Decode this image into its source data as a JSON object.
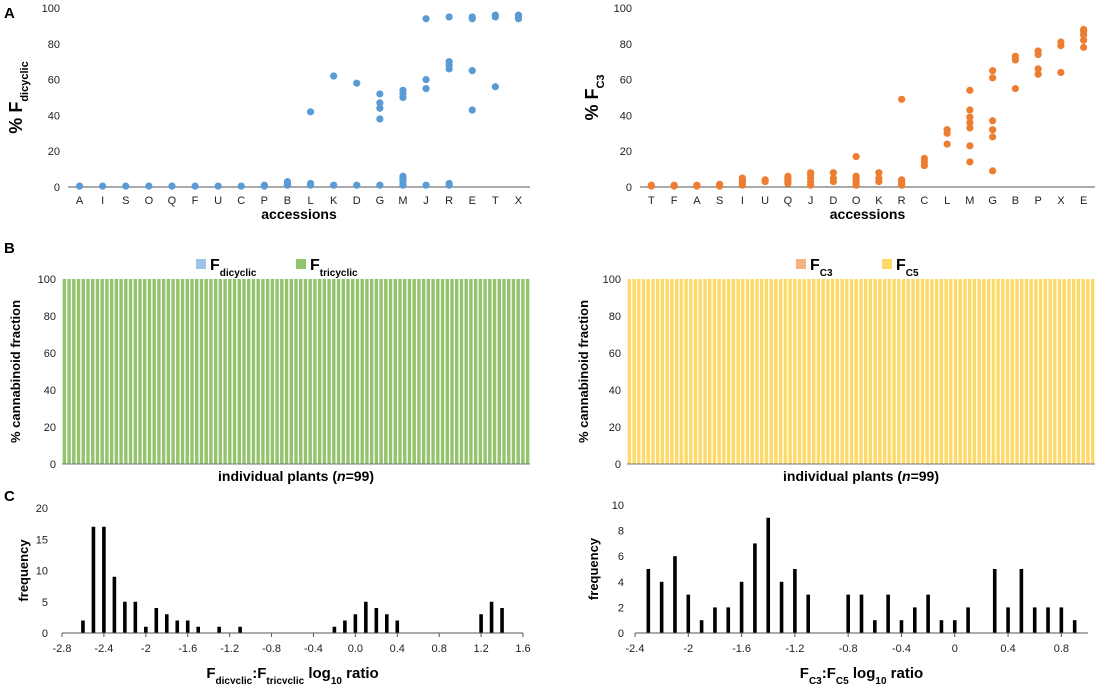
{
  "panel_labels": {
    "a": "A",
    "b": "B",
    "c": "C"
  },
  "colors": {
    "blue": "#5b9bd5",
    "orange": "#ed7d31",
    "green": "#92c36d",
    "lightblue": "#9dc3e6",
    "salmon": "#f4b183",
    "yellow": "#ffd966",
    "black": "#000000"
  },
  "chart_data": [
    {
      "id": "A-left",
      "type": "scatter",
      "ylabel": {
        "pre": "% F",
        "sub": "dicyclic"
      },
      "xlabel": "accessions",
      "ylim": [
        0,
        100
      ],
      "yticks": [
        0,
        20,
        40,
        60,
        80,
        100
      ],
      "categories": [
        "A",
        "I",
        "S",
        "O",
        "Q",
        "F",
        "U",
        "C",
        "P",
        "B",
        "L",
        "K",
        "D",
        "G",
        "M",
        "J",
        "R",
        "E",
        "T",
        "X"
      ],
      "points": {
        "A": [
          0.5
        ],
        "I": [
          0.5
        ],
        "S": [
          0.5
        ],
        "O": [
          0.5
        ],
        "Q": [
          0.5
        ],
        "F": [
          0.5
        ],
        "U": [
          0.5
        ],
        "C": [
          0.5
        ],
        "P": [
          0.5,
          1
        ],
        "B": [
          1,
          2,
          3
        ],
        "L": [
          1,
          2,
          42
        ],
        "K": [
          1,
          62
        ],
        "D": [
          1,
          58
        ],
        "G": [
          1,
          38,
          44,
          47,
          52
        ],
        "M": [
          1,
          3,
          4,
          5,
          6,
          50,
          52,
          54
        ],
        "J": [
          1,
          55,
          60,
          94
        ],
        "R": [
          1,
          2,
          66,
          68,
          70,
          95
        ],
        "E": [
          43,
          65,
          94,
          95
        ],
        "T": [
          56,
          95,
          96
        ],
        "X": [
          94,
          95,
          96
        ]
      }
    },
    {
      "id": "A-right",
      "type": "scatter",
      "ylabel": {
        "pre": "% F",
        "sub": "C3"
      },
      "xlabel": "accessions",
      "ylim": [
        0,
        100
      ],
      "yticks": [
        0,
        20,
        40,
        60,
        80,
        100
      ],
      "categories": [
        "T",
        "F",
        "A",
        "S",
        "I",
        "U",
        "Q",
        "J",
        "D",
        "O",
        "K",
        "R",
        "C",
        "L",
        "M",
        "G",
        "B",
        "P",
        "X",
        "E"
      ],
      "points": {
        "T": [
          0.5,
          1
        ],
        "F": [
          0.5,
          1
        ],
        "A": [
          0.5,
          1
        ],
        "S": [
          0.5,
          1.5
        ],
        "I": [
          1,
          2,
          3,
          4,
          5
        ],
        "U": [
          3,
          4
        ],
        "Q": [
          2,
          3,
          4,
          5,
          6
        ],
        "J": [
          1,
          3,
          5,
          7,
          8
        ],
        "D": [
          3,
          5,
          8
        ],
        "O": [
          1,
          2,
          4,
          5,
          6,
          17
        ],
        "K": [
          3,
          5,
          8
        ],
        "R": [
          1,
          2,
          3,
          4,
          49
        ],
        "C": [
          12,
          14,
          16
        ],
        "L": [
          24,
          30,
          32
        ],
        "M": [
          14,
          23,
          33,
          36,
          39,
          43,
          54
        ],
        "G": [
          9,
          28,
          32,
          37,
          61,
          65
        ],
        "B": [
          55,
          71,
          73
        ],
        "P": [
          63,
          66,
          74,
          76
        ],
        "X": [
          64,
          79,
          81
        ],
        "E": [
          78,
          82,
          85,
          87,
          88
        ]
      }
    },
    {
      "id": "B-left",
      "type": "stacked-bar",
      "legend": [
        {
          "pre": "F",
          "sub": "dicyclic",
          "color": "lightblue"
        },
        {
          "pre": "F",
          "sub": "tricyclic",
          "color": "green"
        }
      ],
      "ylabel": "% cannabinoid fraction",
      "xlabel": {
        "pre": "individual plants (",
        "italic": "n",
        "post": "=99)"
      },
      "ylim": [
        0,
        100
      ],
      "yticks": [
        0,
        20,
        40,
        60,
        80,
        100
      ],
      "n": 99,
      "bottom_series": [
        0,
        0,
        0,
        0,
        0,
        0,
        0,
        0,
        0,
        0,
        0,
        0,
        0,
        0,
        0,
        0,
        0,
        0,
        0,
        0,
        0,
        0,
        0,
        0,
        0,
        0,
        0,
        0,
        0,
        0,
        0,
        0,
        0,
        0,
        0,
        0,
        0,
        0,
        0,
        0,
        0,
        0,
        0,
        0,
        0,
        0,
        0,
        0,
        0,
        0,
        0,
        0,
        0,
        0,
        0,
        0,
        0,
        0,
        0,
        0,
        0,
        0,
        0,
        0,
        0,
        0,
        0,
        0,
        0,
        0,
        0,
        0,
        0,
        0,
        0,
        0,
        0,
        0,
        0,
        0,
        0,
        0,
        0,
        0,
        0,
        0,
        0,
        0,
        0,
        0,
        0,
        0,
        0,
        0,
        0,
        0,
        0,
        0,
        0
      ]
    },
    {
      "id": "B-right",
      "type": "stacked-bar",
      "legend": [
        {
          "pre": "F",
          "sub": "C3",
          "color": "salmon"
        },
        {
          "pre": "F",
          "sub": "C5",
          "color": "yellow"
        }
      ],
      "ylabel": "% cannabinoid fraction",
      "xlabel": {
        "pre": "individual plants (",
        "italic": "n",
        "post": "=99)"
      },
      "ylim": [
        0,
        100
      ],
      "yticks": [
        0,
        20,
        40,
        60,
        80,
        100
      ],
      "n": 99,
      "bottom_series": [
        0,
        0,
        0,
        0,
        0,
        0,
        0,
        0,
        0,
        0,
        0,
        0,
        0,
        0,
        0,
        0,
        0,
        0,
        0,
        0,
        0,
        0,
        0,
        0,
        0,
        0,
        0,
        0,
        0,
        0,
        0,
        0,
        0,
        0,
        0,
        0,
        0,
        0,
        0,
        0,
        0,
        0,
        0,
        0,
        0,
        0,
        0,
        0,
        0,
        0,
        0,
        0,
        0,
        0,
        0,
        0,
        0,
        0,
        0,
        0,
        0,
        0,
        0,
        0,
        0,
        0,
        0,
        0,
        0,
        0,
        0,
        0,
        0,
        0,
        0,
        0,
        0,
        0,
        0,
        0,
        0,
        0,
        0,
        0,
        0,
        0,
        0,
        0,
        0,
        0,
        0,
        0,
        0,
        0,
        0,
        0,
        0,
        0,
        0
      ]
    },
    {
      "id": "C-left",
      "type": "bar",
      "ylabel": "frequency",
      "xlabel": {
        "a": "F",
        "asub": "dicyclic",
        "b": ":F",
        "bsub": "tricyclic",
        "c": " log",
        "csub": "10",
        "d": " ratio"
      },
      "xlim": [
        -2.8,
        1.6
      ],
      "ylim": [
        0,
        20
      ],
      "xticks": [
        "-2.8",
        "-2.4",
        "-2",
        "-1.6",
        "-1.2",
        "-0.8",
        "-0.4",
        "0.0",
        "0.4",
        "0.8",
        "1.2",
        "1.6"
      ],
      "yticks": [
        0,
        5,
        10,
        15,
        20
      ],
      "x": [
        -2.6,
        -2.5,
        -2.4,
        -2.3,
        -2.2,
        -2.1,
        -2.0,
        -1.9,
        -1.8,
        -1.7,
        -1.6,
        -1.5,
        -1.3,
        -1.1,
        -0.2,
        -0.1,
        0.0,
        0.1,
        0.2,
        0.3,
        0.4,
        1.2,
        1.3,
        1.4
      ],
      "values": [
        2,
        17,
        17,
        9,
        5,
        5,
        1,
        4,
        3,
        2,
        2,
        1,
        1,
        1,
        1,
        2,
        3,
        5,
        4,
        3,
        2,
        3,
        5,
        4
      ]
    },
    {
      "id": "C-right",
      "type": "bar",
      "ylabel": "frequency",
      "xlabel": {
        "a": "F",
        "asub": "C3",
        "b": ":F",
        "bsub": "C5",
        "c": " log",
        "csub": "10",
        "d": " ratio"
      },
      "xlim": [
        -2.4,
        1.0
      ],
      "ylim": [
        0,
        10
      ],
      "xticks": [
        "-2.4",
        "-2",
        "-1.6",
        "-1.2",
        "-0.8",
        "-0.4",
        "0",
        "0.4",
        "0.8"
      ],
      "yticks": [
        0,
        2,
        4,
        6,
        8,
        10
      ],
      "x": [
        -2.3,
        -2.2,
        -2.1,
        -2.0,
        -1.9,
        -1.8,
        -1.7,
        -1.6,
        -1.5,
        -1.4,
        -1.3,
        -1.2,
        -1.1,
        -0.8,
        -0.7,
        -0.6,
        -0.5,
        -0.4,
        -0.3,
        -0.2,
        -0.1,
        0.0,
        0.1,
        0.3,
        0.4,
        0.5,
        0.6,
        0.7,
        0.8,
        0.9
      ],
      "values": [
        5,
        4,
        6,
        3,
        1,
        2,
        2,
        4,
        7,
        9,
        4,
        5,
        3,
        3,
        3,
        1,
        3,
        1,
        2,
        3,
        1,
        1,
        2,
        5,
        2,
        5,
        2,
        2,
        2,
        1
      ]
    }
  ]
}
